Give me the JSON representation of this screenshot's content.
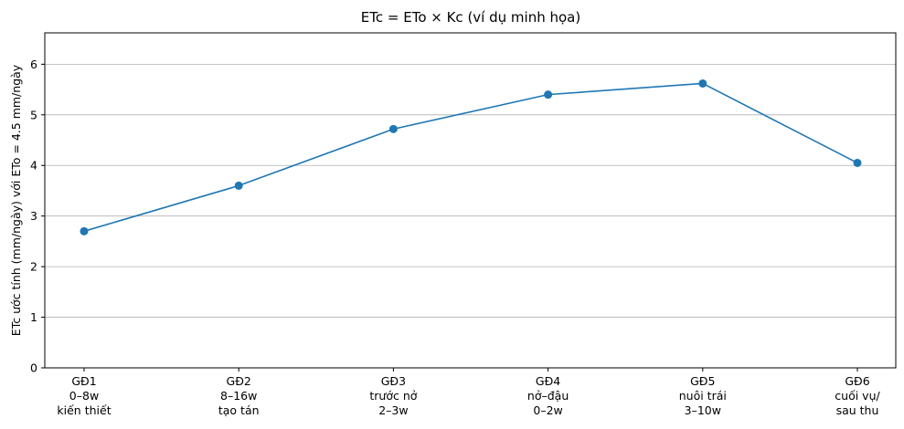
{
  "chart_data": {
    "type": "line",
    "title": "ETc = ETo × Kc (ví dụ minh họa)",
    "xlabel": "",
    "ylabel": "ETc ước tính (mm/ngày) với ETo = 4.5 mm/ngày",
    "categories": [
      [
        "GĐ1",
        "0–8w",
        "kiến thiết"
      ],
      [
        "GĐ2",
        "8–16w",
        "tạo tán"
      ],
      [
        "GĐ3",
        "trước nở",
        "2–3w"
      ],
      [
        "GĐ4",
        "nở–đậu",
        "0–2w"
      ],
      [
        "GĐ5",
        "nuôi trái",
        "3–10w"
      ],
      [
        "GĐ6",
        "cuối vụ/",
        "sau thu"
      ]
    ],
    "values": [
      2.7,
      3.6,
      4.72,
      5.4,
      5.62,
      4.05
    ],
    "ylim": [
      0,
      6.62
    ],
    "yticks": [
      "0",
      "1",
      "2",
      "3",
      "4",
      "5",
      "6"
    ],
    "grid": "y",
    "line_color": "#1f77b4"
  }
}
